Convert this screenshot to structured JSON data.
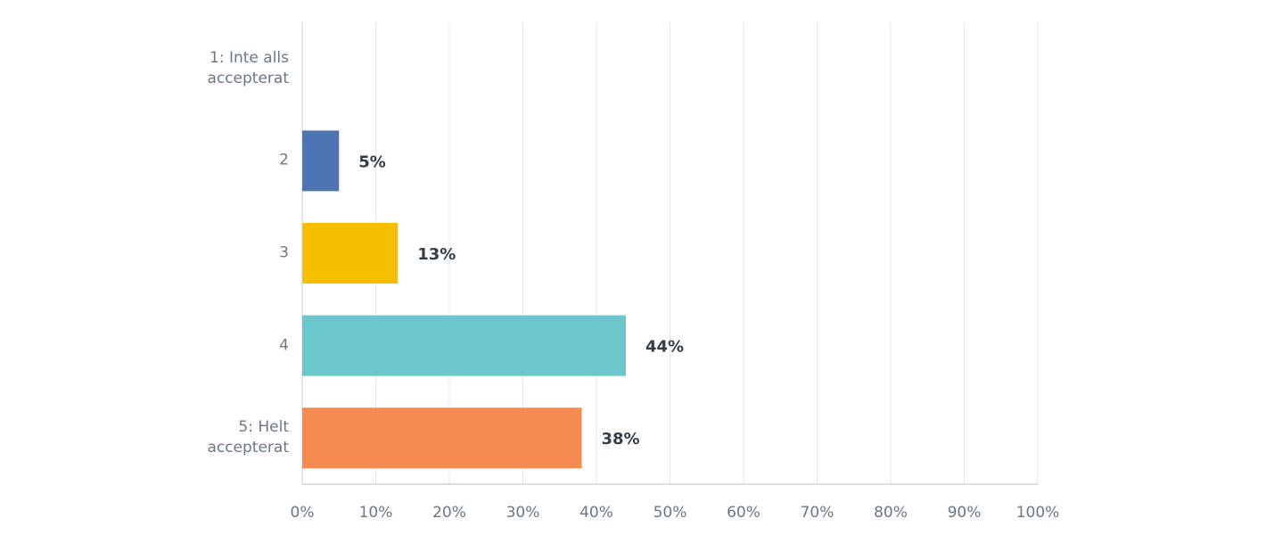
{
  "chart_data": {
    "type": "bar",
    "orientation": "horizontal",
    "categories": [
      "1: Inte alls accepterat",
      "2",
      "3",
      "4",
      "5: Helt accepterat"
    ],
    "values": [
      0,
      5,
      13,
      44,
      38
    ],
    "value_labels": [
      null,
      "5%",
      "13%",
      "44%",
      "38%"
    ],
    "colors": [
      "#4e74b3",
      "#4e74b3",
      "#f6bf00",
      "#6bc7cc",
      "#f68b51"
    ],
    "xlim": [
      0,
      100
    ],
    "xticks": [
      {
        "value": 0,
        "label": "0%"
      },
      {
        "value": 10,
        "label": "10%"
      },
      {
        "value": 20,
        "label": "20%"
      },
      {
        "value": 30,
        "label": "30%"
      },
      {
        "value": 40,
        "label": "40%"
      },
      {
        "value": 50,
        "label": "50%"
      },
      {
        "value": 60,
        "label": "60%"
      },
      {
        "value": 70,
        "label": "70%"
      },
      {
        "value": 80,
        "label": "80%"
      },
      {
        "value": 90,
        "label": "90%"
      },
      {
        "value": 100,
        "label": "100%"
      }
    ],
    "grid": true
  }
}
